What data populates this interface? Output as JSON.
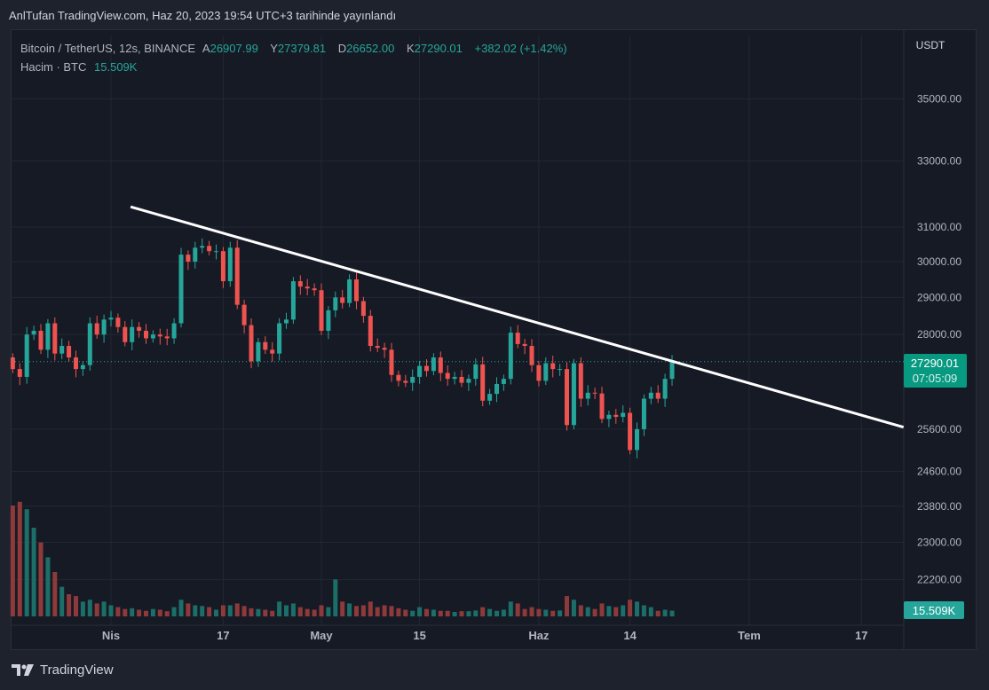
{
  "published": "AnlTufan TradingView.com, Haz 20, 2023 19:54 UTC+3 tarihinde yayınlandı",
  "legend": {
    "symbol": "Bitcoin / TetherUS, 12s, BINANCE",
    "open_label": "A",
    "open": "26907.99",
    "high_label": "Y",
    "high": "27379.81",
    "low_label": "D",
    "low": "26652.00",
    "close_label": "K",
    "close": "27290.01",
    "change": "+382.02 (+1.42%)",
    "volume_label": "Hacim · BTC",
    "volume": "15.509K"
  },
  "currency": "USDT",
  "price_badge": {
    "price": "27290.01",
    "countdown": "07:05:09"
  },
  "volume_badge": "15.509K",
  "footer_brand": "TradingView",
  "colors": {
    "up": "#26a69a",
    "down": "#ef5350",
    "badge": "#089981",
    "trendline": "#ffffff"
  },
  "chart_data": {
    "type": "candlestick",
    "title": "Bitcoin / TetherUS, 12s, BINANCE",
    "scale": "log",
    "start_date": "2023-03-18",
    "y_ticks": [
      35000,
      33000,
      31000,
      30000,
      29000,
      28000,
      25600,
      24600,
      23800,
      23000,
      22200
    ],
    "y_tick_labels": [
      "35000.00",
      "33000.00",
      "31000.00",
      "30000.00",
      "29000.00",
      "28000.00",
      "25600.00",
      "24600.00",
      "23800.00",
      "23000.00",
      "22200.00"
    ],
    "x_ticks": [
      {
        "day": 14,
        "label": "Nis"
      },
      {
        "day": 30,
        "label": "17"
      },
      {
        "day": 44,
        "label": "May"
      },
      {
        "day": 58,
        "label": "15"
      },
      {
        "day": 75,
        "label": "Haz"
      },
      {
        "day": 88,
        "label": "14"
      },
      {
        "day": 105,
        "label": "Tem"
      },
      {
        "day": 121,
        "label": "17"
      }
    ],
    "first_open": 27400,
    "closes": [
      27100,
      26900,
      28000,
      28100,
      27600,
      28300,
      27500,
      27700,
      27400,
      27100,
      27200,
      28300,
      28000,
      28400,
      28450,
      28200,
      27800,
      28200,
      28100,
      27900,
      28000,
      27950,
      27900,
      28300,
      30200,
      30000,
      30400,
      30450,
      30300,
      30300,
      29450,
      30400,
      28800,
      28250,
      27300,
      27800,
      27600,
      27500,
      28300,
      28400,
      29450,
      29300,
      29250,
      29200,
      28100,
      28650,
      29000,
      28850,
      29500,
      28900,
      28500,
      27700,
      27650,
      27600,
      26950,
      26800,
      26750,
      26900,
      27180,
      27050,
      27400,
      27000,
      26850,
      26900,
      26750,
      26850,
      27220,
      26300,
      26470,
      26720,
      26850,
      28050,
      27750,
      27700,
      27200,
      26800,
      27250,
      27100,
      27100,
      25700,
      27250,
      26350,
      26500,
      26480,
      25850,
      25950,
      25900,
      26000,
      25100,
      25600,
      26350,
      26500,
      26350,
      26850,
      27290.01
    ],
    "volumes_k": [
      300,
      310,
      290,
      240,
      200,
      160,
      120,
      80,
      60,
      55,
      40,
      45,
      35,
      40,
      30,
      25,
      20,
      22,
      18,
      15,
      20,
      18,
      14,
      25,
      45,
      35,
      30,
      28,
      25,
      18,
      30,
      30,
      35,
      28,
      22,
      20,
      18,
      15,
      40,
      30,
      35,
      25,
      20,
      18,
      30,
      25,
      100,
      40,
      35,
      28,
      30,
      40,
      25,
      30,
      28,
      22,
      18,
      15,
      25,
      20,
      18,
      15,
      15,
      12,
      14,
      14,
      16,
      25,
      20,
      15,
      18,
      40,
      35,
      20,
      25,
      20,
      18,
      15,
      16,
      55,
      45,
      30,
      25,
      20,
      35,
      28,
      25,
      30,
      45,
      40,
      30,
      25,
      15,
      18,
      15.509
    ],
    "current_price": 27290.01,
    "trendline": {
      "start": {
        "day": 16.8,
        "price": 31600
      },
      "end": {
        "day": 127,
        "price": 25650
      }
    }
  }
}
